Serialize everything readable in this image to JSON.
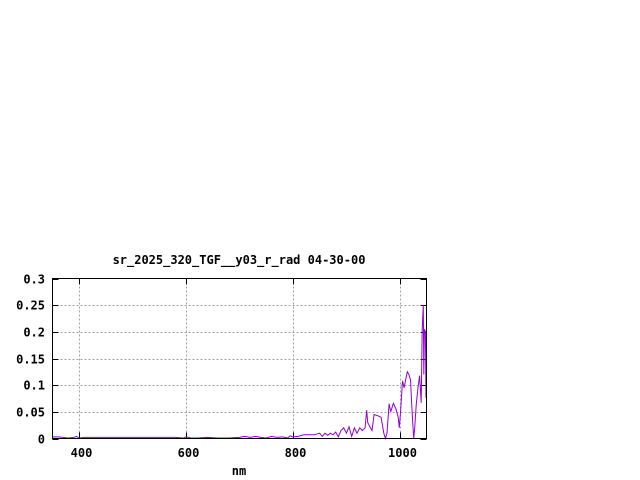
{
  "chart_data": {
    "type": "line",
    "title": "sr_2025_320_TGF__y03_r_rad 04-30-00",
    "xlabel": "nm",
    "ylabel": "",
    "xlim": [
      350,
      1050
    ],
    "ylim": [
      0,
      0.3
    ],
    "grid": true,
    "x_ticks": [
      400,
      600,
      800,
      1000
    ],
    "x_tick_labels": [
      "400",
      "600",
      "800",
      "1000"
    ],
    "y_ticks": [
      0,
      0.05,
      0.1,
      0.15,
      0.2,
      0.25,
      0.3
    ],
    "y_tick_labels": [
      "0",
      "0.05",
      "0.1",
      "0.15",
      "0.2",
      "0.25",
      "0.3"
    ],
    "line_color": "#9400d3",
    "series": [
      {
        "x": [
          350,
          360,
          370,
          380,
          390,
          395,
          400,
          410,
          420,
          440,
          460,
          480,
          500,
          520,
          540,
          560,
          580,
          595,
          600,
          610,
          620,
          640,
          660,
          680,
          700,
          710,
          720,
          730,
          740,
          750,
          760,
          770,
          780,
          790,
          795,
          800,
          810,
          820,
          840,
          850,
          855,
          860,
          865,
          870,
          875,
          880,
          885,
          890,
          895,
          900,
          905,
          910,
          915,
          920,
          925,
          930,
          935,
          938,
          940,
          945,
          948,
          952,
          958,
          965,
          970,
          973,
          976,
          980,
          983,
          988,
          993,
          997,
          999,
          1002,
          1005,
          1008,
          1010,
          1014,
          1017,
          1020,
          1023,
          1026,
          1028,
          1031,
          1034,
          1037,
          1040,
          1042,
          1044,
          1045,
          1046,
          1048,
          1049
        ],
        "y": [
          0.003,
          0.003,
          0.002,
          0.001,
          0.002,
          0.004,
          0.001,
          0.002,
          0.002,
          0.002,
          0.002,
          0.002,
          0.002,
          0.002,
          0.002,
          0.002,
          0.002,
          0.001,
          0.003,
          0.001,
          0.001,
          0.002,
          0.001,
          0.001,
          0.002,
          0.004,
          0.002,
          0.004,
          0.002,
          0.001,
          0.004,
          0.002,
          0.003,
          0.001,
          0.005,
          0.003,
          0.004,
          0.007,
          0.007,
          0.01,
          0.004,
          0.01,
          0.006,
          0.01,
          0.007,
          0.012,
          0.003,
          0.015,
          0.02,
          0.01,
          0.022,
          0.004,
          0.02,
          0.01,
          0.02,
          0.015,
          0.02,
          0.053,
          0.03,
          0.02,
          0.015,
          0.045,
          0.043,
          0.04,
          0.01,
          0.0,
          0.01,
          0.065,
          0.05,
          0.066,
          0.055,
          0.04,
          0.02,
          0.06,
          0.108,
          0.095,
          0.105,
          0.125,
          0.12,
          0.11,
          0.05,
          0.0,
          0.02,
          0.065,
          0.095,
          0.118,
          0.067,
          0.205,
          0.25,
          0.12,
          0.205,
          0.2,
          0.076
        ]
      }
    ]
  }
}
